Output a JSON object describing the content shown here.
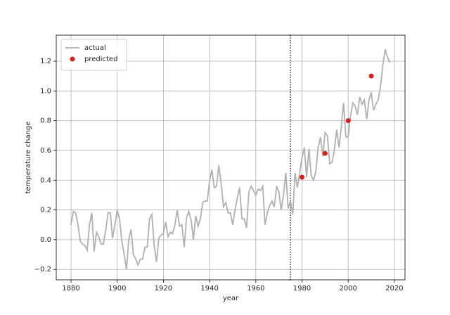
{
  "chart_data": {
    "type": "line",
    "xlabel": "year",
    "ylabel": "temperature change",
    "xlim": [
      1873.6,
      2024.6
    ],
    "ylim": [
      -0.27,
      1.375
    ],
    "xticks": [
      1880,
      1900,
      1920,
      1940,
      1960,
      1980,
      2000,
      2020
    ],
    "yticks": [
      {
        "value": -0.2,
        "label": "−0.2"
      },
      {
        "value": 0,
        "label": "0.0"
      },
      {
        "value": 0.2,
        "label": "0.2"
      },
      {
        "value": 0.4,
        "label": "0.4"
      },
      {
        "value": 0.6,
        "label": "0.6"
      },
      {
        "value": 0.8,
        "label": "0.8"
      },
      {
        "value": 1,
        "label": "1.0"
      },
      {
        "value": 1.2,
        "label": "1.2"
      }
    ],
    "grid": true,
    "legend": "upper left",
    "vertical_line": {
      "x": 1975,
      "color": "#000000",
      "style": "dotted"
    },
    "series": [
      {
        "name": "actual",
        "kind": "line",
        "color": "#b0b0b0",
        "x": [
          1880,
          1881,
          1882,
          1883,
          1884,
          1885,
          1886,
          1887,
          1888,
          1889,
          1890,
          1891,
          1892,
          1893,
          1894,
          1895,
          1896,
          1897,
          1898,
          1899,
          1900,
          1901,
          1902,
          1903,
          1904,
          1905,
          1906,
          1907,
          1908,
          1909,
          1910,
          1911,
          1912,
          1913,
          1914,
          1915,
          1916,
          1917,
          1918,
          1919,
          1920,
          1921,
          1922,
          1923,
          1924,
          1925,
          1926,
          1927,
          1928,
          1929,
          1930,
          1931,
          1932,
          1933,
          1934,
          1935,
          1936,
          1937,
          1938,
          1939,
          1940,
          1941,
          1942,
          1943,
          1944,
          1945,
          1946,
          1947,
          1948,
          1949,
          1950,
          1951,
          1952,
          1953,
          1954,
          1955,
          1956,
          1957,
          1958,
          1959,
          1960,
          1961,
          1962,
          1963,
          1964,
          1965,
          1966,
          1967,
          1968,
          1969,
          1970,
          1971,
          1972,
          1973,
          1974,
          1975,
          1976,
          1977,
          1978,
          1979,
          1980,
          1981,
          1982,
          1983,
          1984,
          1985,
          1986,
          1987,
          1988,
          1989,
          1990,
          1991,
          1992,
          1993,
          1994,
          1995,
          1996,
          1997,
          1998,
          1999,
          2000,
          2001,
          2002,
          2003,
          2004,
          2005,
          2006,
          2007,
          2008,
          2009,
          2010,
          2011,
          2012,
          2013,
          2014,
          2015,
          2016,
          2017,
          2018
        ],
        "values": [
          0.1,
          0.19,
          0.18,
          0.1,
          -0.01,
          -0.03,
          -0.04,
          -0.07,
          0.1,
          0.18,
          -0.08,
          0.05,
          0.02,
          -0.03,
          -0.03,
          0.06,
          0.18,
          0.18,
          0.01,
          0.1,
          0.2,
          0.14,
          -0.01,
          -0.1,
          -0.2,
          0.0,
          0.07,
          -0.1,
          -0.13,
          -0.17,
          -0.13,
          -0.13,
          -0.05,
          -0.05,
          0.14,
          0.17,
          -0.04,
          -0.15,
          0.01,
          0.03,
          0.04,
          0.12,
          0.02,
          0.05,
          0.04,
          0.1,
          0.2,
          0.09,
          0.1,
          -0.05,
          0.15,
          0.19,
          0.13,
          0.0,
          0.16,
          0.09,
          0.14,
          0.25,
          0.26,
          0.26,
          0.4,
          0.47,
          0.35,
          0.36,
          0.5,
          0.38,
          0.22,
          0.25,
          0.18,
          0.18,
          0.1,
          0.2,
          0.28,
          0.35,
          0.14,
          0.14,
          0.08,
          0.32,
          0.36,
          0.33,
          0.3,
          0.34,
          0.33,
          0.36,
          0.1,
          0.18,
          0.23,
          0.26,
          0.22,
          0.36,
          0.32,
          0.2,
          0.3,
          0.45,
          0.21,
          0.26,
          0.17,
          0.45,
          0.35,
          0.45,
          0.55,
          0.62,
          0.42,
          0.61,
          0.43,
          0.4,
          0.46,
          0.62,
          0.69,
          0.56,
          0.72,
          0.7,
          0.51,
          0.52,
          0.6,
          0.74,
          0.62,
          0.75,
          0.92,
          0.69,
          0.69,
          0.83,
          0.92,
          0.9,
          0.84,
          0.96,
          0.91,
          0.94,
          0.81,
          0.94,
          0.99,
          0.87,
          0.91,
          0.94,
          1.03,
          1.17,
          1.28,
          1.23,
          1.19
        ]
      },
      {
        "name": "predicted",
        "kind": "scatter",
        "color": "#d62020",
        "x": [
          1980,
          1990,
          2000,
          2010
        ],
        "values": [
          0.42,
          0.58,
          0.8,
          1.1
        ]
      }
    ]
  }
}
